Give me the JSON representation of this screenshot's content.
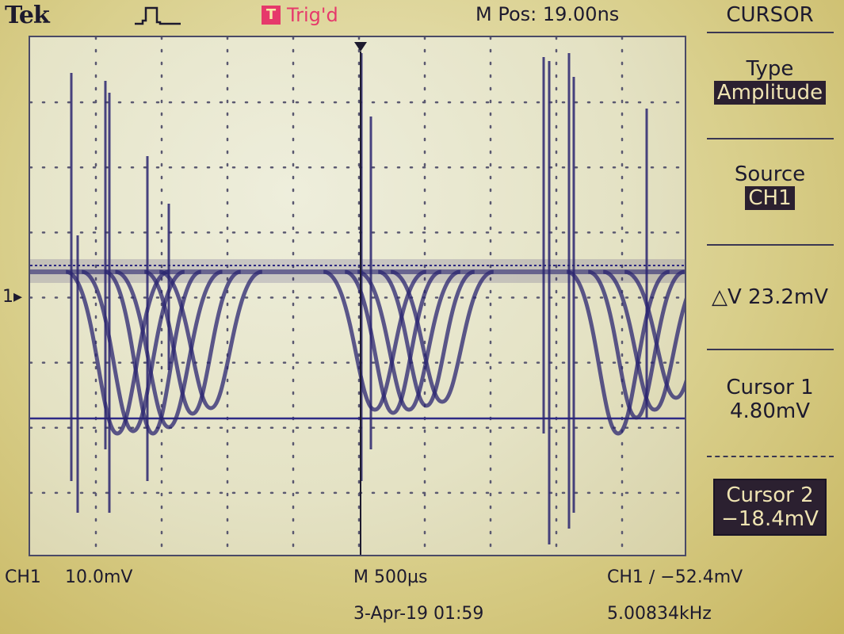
{
  "header": {
    "brand": "Tek",
    "trigger_icon_text": "T",
    "trigger_status": "Trig'd",
    "m_pos": "M Pos: 19.00ns"
  },
  "channel_marker": "1",
  "menu": {
    "title": "CURSOR",
    "type_label": "Type",
    "type_value": "Amplitude",
    "source_label": "Source",
    "source_value": "CH1",
    "delta_v": "△V 23.2mV",
    "cursor1_label": "Cursor 1",
    "cursor1_value": "4.80mV",
    "cursor2_label": "Cursor 2",
    "cursor2_value": "−18.4mV"
  },
  "status": {
    "ch1_label": "CH1",
    "ch1_scale": "10.0mV",
    "timebase": "M 500µs",
    "trigger_readout": "CH1 ∕ −52.4mV",
    "date_time": "3-Apr-19 01:59",
    "frequency": "5.00834kHz"
  },
  "colors": {
    "trigger": "#e6396b",
    "trace": "#2a2470",
    "cursor": "#2e2a86"
  }
}
